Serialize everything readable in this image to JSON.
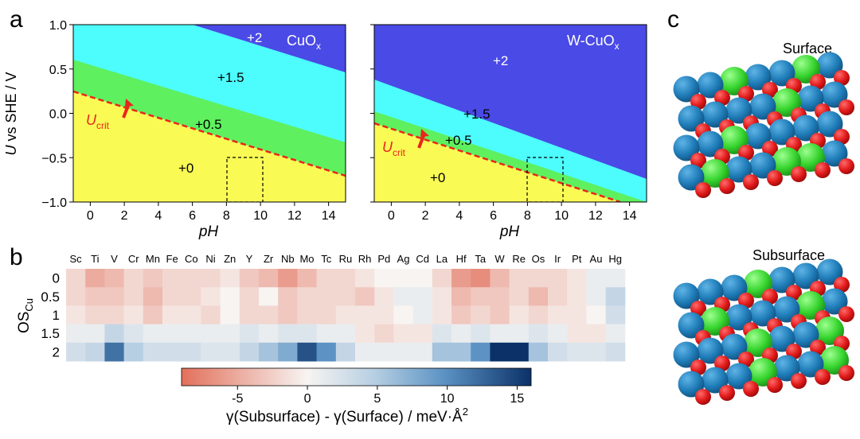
{
  "panels": {
    "a": {
      "letter": "a",
      "ylabel_italic": "U",
      "ylabel_rest": " vs SHE / V",
      "xlabel": "pH",
      "yticks": [
        "1.0",
        "0.5",
        "0.0",
        "−0.5",
        "−1.0"
      ],
      "xticks": [
        "0",
        "2",
        "4",
        "6",
        "8",
        "10",
        "12",
        "14"
      ],
      "ucrit_main": "U",
      "ucrit_sub": "crit",
      "colors": {
        "dark_blue": "#4a4ae6",
        "cyan": "#4dfcfc",
        "green": "#5ef05e",
        "yellow": "#fafa55",
        "ucrit_line": "#e8261c"
      },
      "left": {
        "title_main": "CuO",
        "title_sub": "x",
        "regions": {
          "r2": "+2",
          "r15": "+1.5",
          "r05": "+0.5",
          "r0": "+0"
        }
      },
      "right": {
        "title_main": "W-CuO",
        "title_sub": "x",
        "regions": {
          "r2": "+2",
          "r15": "+1.5",
          "r05": "+0.5",
          "r0": "+0"
        }
      }
    },
    "b": {
      "letter": "b",
      "ylabel_main": "OS",
      "ylabel_sub": "Cu",
      "cbar_ticks": [
        "-5",
        "0",
        "5",
        "10",
        "15"
      ],
      "cbar_label_pre": "γ(Subsurface) - γ(Surface) / meV·Å",
      "cbar_label_sup": "2"
    },
    "c": {
      "letter": "c",
      "surface_label": "Surface",
      "subsurface_label": "Subsurface"
    }
  },
  "chart_data": [
    {
      "type": "area",
      "title": "CuOx",
      "xlabel": "pH",
      "ylabel": "U vs SHE / V",
      "xlim": [
        -1,
        15
      ],
      "ylim": [
        -1.0,
        1.0
      ],
      "series": [
        {
          "name": "Ucrit",
          "x": [
            -1,
            15
          ],
          "y": [
            0.25,
            -0.7
          ]
        },
        {
          "name": "+0.5/+1.5 boundary",
          "x": [
            -1,
            15
          ],
          "y": [
            0.6,
            -0.33
          ]
        },
        {
          "name": "+1.5/+2 boundary",
          "x": [
            -1,
            15
          ],
          "y": [
            1.65,
            0.44
          ]
        }
      ],
      "regions": [
        "+2",
        "+1.5",
        "+0.5",
        "+0"
      ]
    },
    {
      "type": "area",
      "title": "W-CuOx",
      "xlabel": "pH",
      "ylabel": "U vs SHE / V",
      "xlim": [
        -1,
        15
      ],
      "ylim": [
        -1.0,
        1.0
      ],
      "series": [
        {
          "name": "Ucrit",
          "x": [
            -1,
            15
          ],
          "y": [
            -0.1,
            -1.1
          ]
        },
        {
          "name": "+0.5/+1.5 boundary",
          "x": [
            -1,
            15
          ],
          "y": [
            0.3,
            -0.79
          ]
        },
        {
          "name": "+1.5/+2 boundary",
          "x": [
            -1,
            15
          ],
          "y": [
            0.92,
            -0.21
          ]
        }
      ],
      "regions": [
        "+2",
        "+1.5",
        "+0.5",
        "+0"
      ]
    },
    {
      "type": "heatmap",
      "columns": [
        "Sc",
        "Ti",
        "V",
        "Cr",
        "Mn",
        "Fe",
        "Co",
        "Ni",
        "Zn",
        "Y",
        "Zr",
        "Nb",
        "Mo",
        "Tc",
        "Ru",
        "Rh",
        "Pd",
        "Ag",
        "Cd",
        "La",
        "Hf",
        "Ta",
        "W",
        "Re",
        "Os",
        "Ir",
        "Pt",
        "Au",
        "Hg"
      ],
      "rows": [
        "0",
        "0.5",
        "1",
        "1.5",
        "2"
      ],
      "values": [
        [
          -2,
          -5,
          -4,
          -2,
          -3,
          -2,
          -2,
          -2,
          -1,
          -3,
          -4,
          -6,
          -4,
          -2,
          -2,
          -1,
          0,
          0,
          0,
          -2,
          -6,
          -7,
          -4,
          -2,
          -2,
          -2,
          -1,
          1,
          1
        ],
        [
          -2,
          -3,
          -3,
          -2,
          -4,
          -2,
          -2,
          -1,
          0,
          -2,
          0,
          -3,
          -2,
          -2,
          -2,
          -3,
          -1,
          1,
          1,
          -1,
          -4,
          -3,
          -3,
          -2,
          -4,
          -2,
          -1,
          1,
          4
        ],
        [
          -1,
          -2,
          -2,
          -1,
          -3,
          -1,
          -1,
          -2,
          0,
          -2,
          -2,
          -3,
          -2,
          -2,
          -1,
          -1,
          -1,
          0,
          1,
          -1,
          -3,
          -2,
          -3,
          -1,
          -2,
          -1,
          -1,
          0,
          3
        ],
        [
          1,
          1,
          4,
          2,
          1,
          1,
          1,
          1,
          1,
          2,
          1,
          2,
          2,
          1,
          1,
          -1,
          -2,
          -1,
          -1,
          2,
          1,
          2,
          1,
          1,
          2,
          1,
          -1,
          -1,
          1
        ],
        [
          3,
          4,
          12,
          5,
          3,
          3,
          3,
          2,
          2,
          4,
          6,
          8,
          14,
          10,
          4,
          1,
          1,
          1,
          1,
          6,
          6,
          10,
          16,
          16,
          6,
          3,
          2,
          2,
          3
        ]
      ],
      "colorbar": {
        "min": -9,
        "max": 16,
        "label": "γ(Subsurface) - γ(Surface) / meV·Å2",
        "ticks": [
          -5,
          0,
          5,
          10,
          15
        ]
      }
    }
  ]
}
